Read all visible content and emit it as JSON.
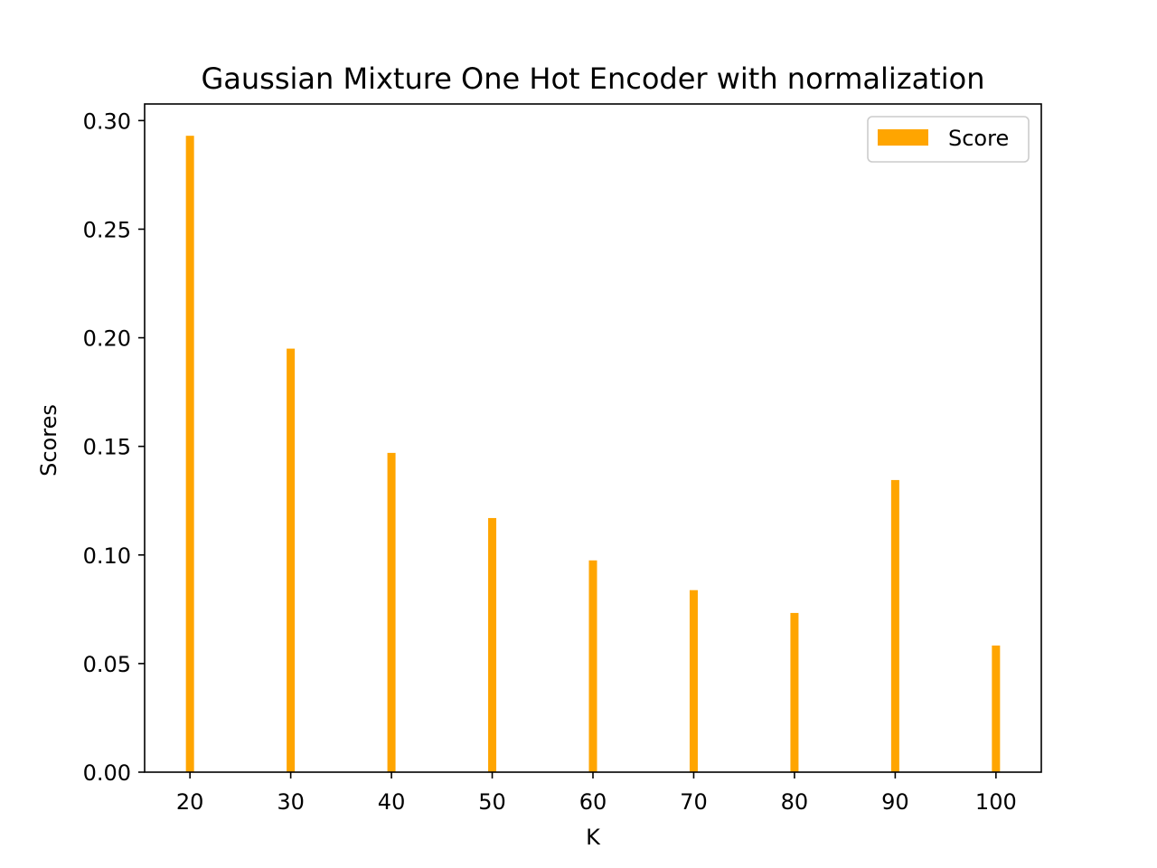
{
  "chart_data": {
    "type": "bar",
    "title": "Gaussian Mixture One Hot Encoder with normalization",
    "xlabel": "K",
    "ylabel": "Scores",
    "x": [
      20,
      30,
      40,
      50,
      60,
      70,
      80,
      90,
      100
    ],
    "xlim": [
      15.5,
      104.5
    ],
    "ylim": [
      0,
      0.30764
    ],
    "xticks": [
      "20",
      "30",
      "40",
      "50",
      "60",
      "70",
      "80",
      "90",
      "100"
    ],
    "yticks": [
      "0.00",
      "0.05",
      "0.10",
      "0.15",
      "0.20",
      "0.25",
      "0.30"
    ],
    "series": [
      {
        "name": "Score",
        "color": "#ffa500",
        "values": [
          0.293,
          0.195,
          0.147,
          0.117,
          0.0975,
          0.0838,
          0.0733,
          0.1345,
          0.0583
        ]
      }
    ],
    "grid": false,
    "legend": "upper right"
  }
}
